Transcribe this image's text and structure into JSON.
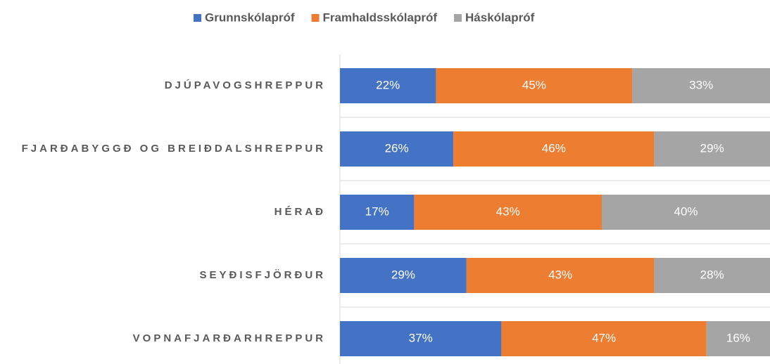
{
  "chart_data": {
    "type": "stacked-barh",
    "categories": [
      "DJÚPAVOGSHREPPUR",
      "FJARÐABYGGÐ OG BREIÐDALSHREPPUR",
      "HÉRAÐ",
      "SEYÐISFJÖRÐUR",
      "VOPNAFJARÐARHREPPUR"
    ],
    "series": [
      {
        "name": "Grunnskólapróf",
        "color": "#4472c4",
        "values": [
          22,
          26,
          17,
          29,
          37
        ],
        "value_labels": [
          "22%",
          "26%",
          "17%",
          "29%",
          "37%"
        ]
      },
      {
        "name": "Framhaldsskólapróf",
        "color": "#ed7d31",
        "values": [
          45,
          46,
          43,
          43,
          47
        ],
        "value_labels": [
          "45%",
          "46%",
          "43%",
          "43%",
          "47%"
        ]
      },
      {
        "name": "Háskólapróf",
        "color": "#a5a5a5",
        "values": [
          33,
          29,
          40,
          28,
          16
        ],
        "value_labels": [
          "33%",
          "29%",
          "40%",
          "28%",
          "16%"
        ]
      }
    ],
    "xlim": [
      0,
      100
    ],
    "legend": "top"
  }
}
